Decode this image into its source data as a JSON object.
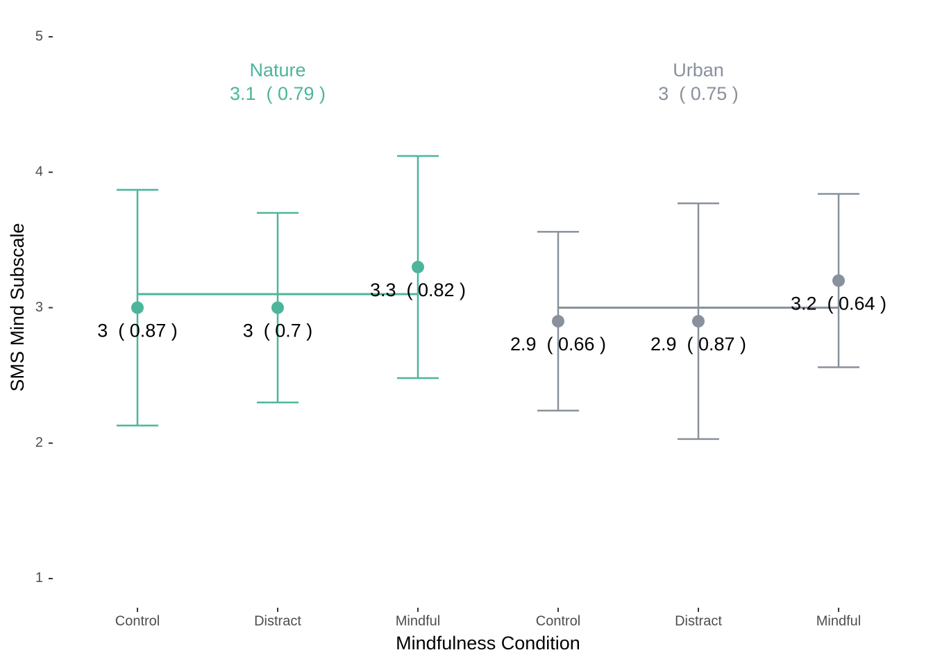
{
  "chart_data": {
    "type": "errorbar",
    "x_label": "Mindfulness Condition",
    "y_label": "SMS Mind Subscale",
    "categories": [
      "Control",
      "Distract",
      "Mindful",
      "Control",
      "Distract",
      "Mindful"
    ],
    "ylim": [
      0.8,
      5.2
    ],
    "yticks": [
      1,
      2,
      3,
      4,
      5
    ],
    "grid": false,
    "series": [
      {
        "name": "Nature",
        "color": "#4cb59b",
        "values": [
          3,
          3,
          3.3,
          null,
          null,
          null
        ],
        "errors": [
          0.87,
          0.7,
          0.82,
          null,
          null,
          null
        ],
        "value_labels": [
          "3  ( 0.87 )",
          "3  ( 0.7 )",
          "3.3  ( 0.82 )",
          null,
          null,
          null
        ],
        "mean": 3.1,
        "mean_label": "3.1  ( 0.79 )"
      },
      {
        "name": "Urban",
        "color": "#88919c",
        "values": [
          null,
          null,
          null,
          2.9,
          2.9,
          3.2
        ],
        "errors": [
          null,
          null,
          null,
          0.66,
          0.87,
          0.64
        ],
        "value_labels": [
          null,
          null,
          null,
          "2.9  ( 0.66 )",
          "2.9  ( 0.87 )",
          "3.2  ( 0.64 )"
        ],
        "mean": 3,
        "mean_label": "3  ( 0.75 )"
      }
    ]
  }
}
